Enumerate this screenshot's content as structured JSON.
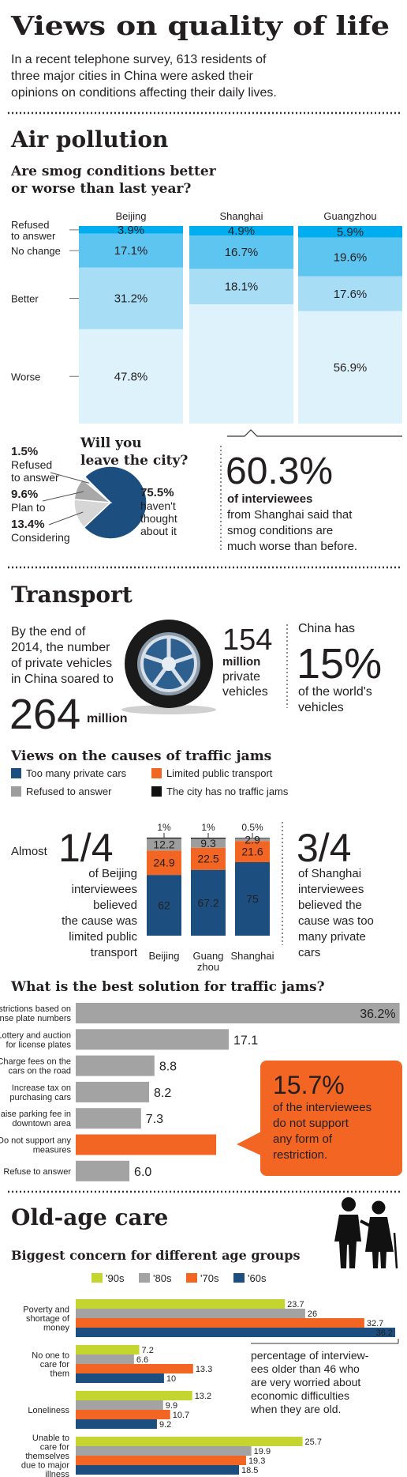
{
  "header": {
    "title": "Views on quality of life",
    "intro": [
      "In a recent telephone survey, 613 residents of",
      "three major cities in China were asked their",
      "opinions on conditions affecting their daily lives."
    ]
  },
  "air_pollution": {
    "heading": "Air pollution",
    "callout": {
      "figure": "60.3%",
      "lead": "of interviewees",
      "lines": [
        "from Shanghai said that",
        "smog conditions are",
        "much worse than before."
      ]
    }
  },
  "transport": {
    "heading": "Transport",
    "intro": [
      "By the end of",
      "2014, the number",
      "of private vehicles",
      "in China soared to"
    ],
    "total": {
      "figure": "264",
      "unit": "million"
    },
    "private": {
      "figure": "154",
      "unit": "million",
      "lines": [
        "private",
        "vehicles"
      ]
    },
    "share": {
      "lead": "China has",
      "figure": "15%",
      "lines": [
        "of the world's",
        "vehicles"
      ]
    },
    "beijing_note": {
      "lead": "Almost",
      "figure": "1/4",
      "lines": [
        "of Beijing",
        "interviewees",
        "believed",
        "the cause was",
        "limited public",
        "transport"
      ]
    },
    "shanghai_note": {
      "figure": "3/4",
      "lines": [
        "of Shanghai",
        "interviewees",
        "believed the",
        "cause was too",
        "many private",
        "cars"
      ]
    },
    "solution_note": {
      "figure": "15.7%",
      "lines": [
        "of the interviewees",
        "do not support",
        "any form of",
        "restriction."
      ]
    }
  },
  "old_age_care": {
    "heading": "Old-age care",
    "note": [
      "percentage of interview-",
      "ees older than 46 who",
      "are very worried about",
      "economic difficulties",
      "when they are old."
    ]
  },
  "chart_data": [
    {
      "type": "stacked-bar",
      "title": [
        "Are smog conditions better",
        "or worse than last year?"
      ],
      "categories": [
        "Beijing",
        "Shanghai",
        "Guangzhou"
      ],
      "ylim": [
        0,
        100
      ],
      "series": [
        {
          "name": [
            "Refused",
            "to answer"
          ],
          "color": "#00aeef",
          "values": [
            3.9,
            4.9,
            5.9
          ],
          "value_labels": [
            "3.9%",
            "4.9%",
            "5.9%"
          ]
        },
        {
          "name": "No change",
          "color": "#5ec5f0",
          "values": [
            17.1,
            16.7,
            19.6
          ],
          "value_labels": [
            "17.1%",
            "16.7%",
            "19.6%"
          ]
        },
        {
          "name": "Better",
          "color": "#a8ddf6",
          "values": [
            31.2,
            18.1,
            17.6
          ],
          "value_labels": [
            "31.2%",
            "18.1%",
            "17.6%"
          ]
        },
        {
          "name": "Worse",
          "color": "#def2fb",
          "values": [
            47.8,
            60.3,
            56.9
          ],
          "value_labels": [
            "47.8%",
            null,
            "56.9%"
          ]
        }
      ]
    },
    {
      "type": "pie",
      "title": [
        "Will you",
        "leave the city?"
      ],
      "categories": [
        [
          "haven't",
          "thought",
          "about it"
        ],
        "Considering",
        "Plan to",
        [
          "Refused",
          "to answer"
        ]
      ],
      "values": [
        75.5,
        13.4,
        9.6,
        1.5
      ],
      "value_labels": [
        "75.5%",
        "13.4%",
        "9.6%",
        "1.5%"
      ],
      "colors": [
        "#1c4f80",
        "#d6d6d6",
        "#a8a8a8",
        "#ececec"
      ]
    },
    {
      "type": "stacked-bar",
      "title": "Views on the causes of traffic jams",
      "categories": [
        "Beijing",
        [
          "Guang",
          "zhou"
        ],
        "Shanghai"
      ],
      "ylim": [
        0,
        100
      ],
      "series": [
        {
          "name": "Too many private cars",
          "color": "#1c4f80",
          "values": [
            62,
            67.2,
            75
          ]
        },
        {
          "name": "Limited public transport",
          "color": "#f26522",
          "values": [
            24.9,
            22.5,
            21.6
          ]
        },
        {
          "name": "Refused to answer",
          "color": "#9d9d9d",
          "values": [
            12.2,
            9.3,
            2.9
          ]
        },
        {
          "name": "The city has no traffic jams",
          "color": "#111111",
          "values": [
            1,
            1,
            0.5
          ],
          "value_labels": [
            "1%",
            "1%",
            "0.5%"
          ]
        }
      ]
    },
    {
      "type": "hbar",
      "title": "What is the best solution for traffic jams?",
      "categories": [
        [
          "Restrictions based on",
          "license plate numbers"
        ],
        [
          "Lottery and auction",
          "for license plates"
        ],
        [
          "Charge fees on the",
          "cars on the road"
        ],
        [
          "Increase tax on",
          "purchasing cars"
        ],
        [
          "Raise parking fee in",
          "downtown area"
        ],
        [
          "Do not support any",
          "measures"
        ],
        "Refuse to answer"
      ],
      "values": [
        36.2,
        17.1,
        8.8,
        8.2,
        7.3,
        15.7,
        6
      ],
      "value_labels": [
        "36.2%",
        "17.1",
        "8.8",
        "8.2",
        "7.3",
        null,
        "6.0"
      ],
      "colors": [
        "#a3a3a3",
        "#a3a3a3",
        "#a3a3a3",
        "#a3a3a3",
        "#a3a3a3",
        "#f26522",
        "#a3a3a3"
      ],
      "xlim": [
        0,
        36.5
      ]
    },
    {
      "type": "grouped-hbar",
      "title": "Biggest concern for different age groups",
      "categories": [
        [
          "Poverty and",
          "shortage of",
          "money"
        ],
        [
          "No one to",
          "care for",
          "them"
        ],
        "Loneliness",
        [
          "Unable to",
          "care for",
          "themselves",
          "due to major",
          "illness"
        ]
      ],
      "xlim": [
        0,
        37
      ],
      "series": [
        {
          "name": "'90s",
          "color": "#c4d52f",
          "values": [
            23.7,
            7.2,
            13.2,
            25.7
          ]
        },
        {
          "name": "'80s",
          "color": "#a3a3a3",
          "values": [
            26,
            6.6,
            9.9,
            19.9
          ]
        },
        {
          "name": "'70s",
          "color": "#f26522",
          "values": [
            32.7,
            13.3,
            10.7,
            19.3
          ]
        },
        {
          "name": "'60s",
          "color": "#1c4f80",
          "values": [
            36.2,
            10,
            9.2,
            18.5
          ]
        }
      ]
    }
  ]
}
